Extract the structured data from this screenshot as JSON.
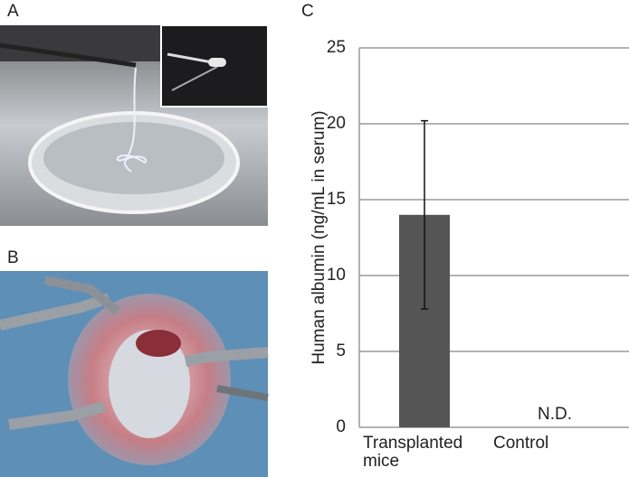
{
  "panel_labels": [
    "A",
    "B",
    "C"
  ],
  "chart_data": {
    "type": "bar",
    "y_label": "Human albumin (ng/mL in serum)",
    "categories": [
      "Transplanted mice",
      "Control"
    ],
    "values": [
      14,
      null
    ],
    "errors": [
      6.2,
      null
    ],
    "annotation": "N.D.",
    "color": "#555555",
    "ylim": [
      0,
      25
    ],
    "yticks": [
      0,
      5,
      10,
      15,
      20,
      25
    ],
    "grid": true
  }
}
